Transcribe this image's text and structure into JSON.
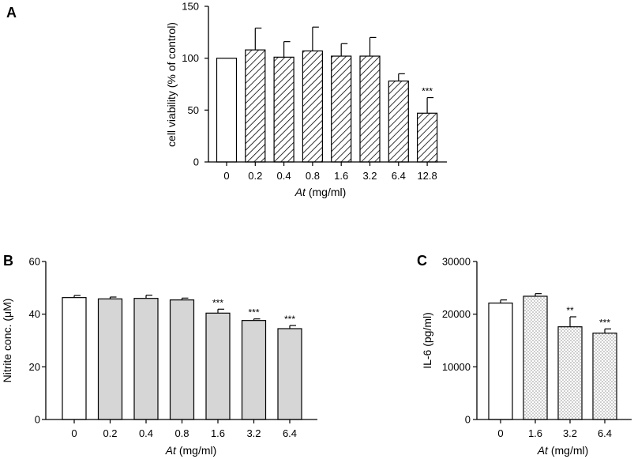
{
  "chart_data": [
    {
      "panel": "A",
      "type": "bar",
      "title": "",
      "xlabel_italic": "At",
      "xlabel_rest": " (mg/ml)",
      "ylabel": "cell viability (% of control)",
      "categories": [
        "0",
        "0.2",
        "0.4",
        "0.8",
        "1.6",
        "3.2",
        "6.4",
        "12.8"
      ],
      "values": [
        100,
        108,
        101,
        107,
        102,
        102,
        78,
        47
      ],
      "errors": [
        0,
        21,
        15,
        23,
        12,
        18,
        7,
        15
      ],
      "significance": [
        "",
        "",
        "",
        "",
        "",
        "",
        "",
        "***"
      ],
      "fills": [
        "white",
        "hatch",
        "hatch",
        "hatch",
        "hatch",
        "hatch",
        "hatch",
        "hatch"
      ],
      "ylim": [
        0,
        150
      ],
      "yticks": [
        "0",
        "50",
        "100",
        "150"
      ]
    },
    {
      "panel": "B",
      "type": "bar",
      "title": "",
      "xlabel_italic": "At",
      "xlabel_rest": " (mg/ml)",
      "ylabel": "Nitrite conc. (μM)",
      "categories": [
        "0",
        "0.2",
        "0.4",
        "0.8",
        "1.6",
        "3.2",
        "6.4"
      ],
      "values": [
        46.3,
        45.8,
        46.0,
        45.4,
        40.4,
        37.6,
        34.5
      ],
      "errors": [
        0.8,
        0.7,
        1.2,
        0.7,
        1.5,
        0.6,
        1.2
      ],
      "significance": [
        "",
        "",
        "",
        "",
        "***",
        "***",
        "***"
      ],
      "fills": [
        "white",
        "gray",
        "gray",
        "gray",
        "gray",
        "gray",
        "gray"
      ],
      "ylim": [
        0,
        60
      ],
      "yticks": [
        "0",
        "20",
        "40",
        "60"
      ]
    },
    {
      "panel": "C",
      "type": "bar",
      "title": "",
      "xlabel_italic": "At",
      "xlabel_rest": " (mg/ml)",
      "ylabel": "IL-6 (pg/ml)",
      "categories": [
        "0",
        "1.6",
        "3.2",
        "6.4"
      ],
      "values": [
        22100,
        23400,
        17600,
        16400
      ],
      "errors": [
        600,
        500,
        1900,
        800
      ],
      "significance": [
        "",
        "",
        "**",
        "***"
      ],
      "fills": [
        "white",
        "dots",
        "dots",
        "dots"
      ],
      "ylim": [
        0,
        30000
      ],
      "yticks": [
        "0",
        "10000",
        "20000",
        "30000"
      ]
    }
  ]
}
